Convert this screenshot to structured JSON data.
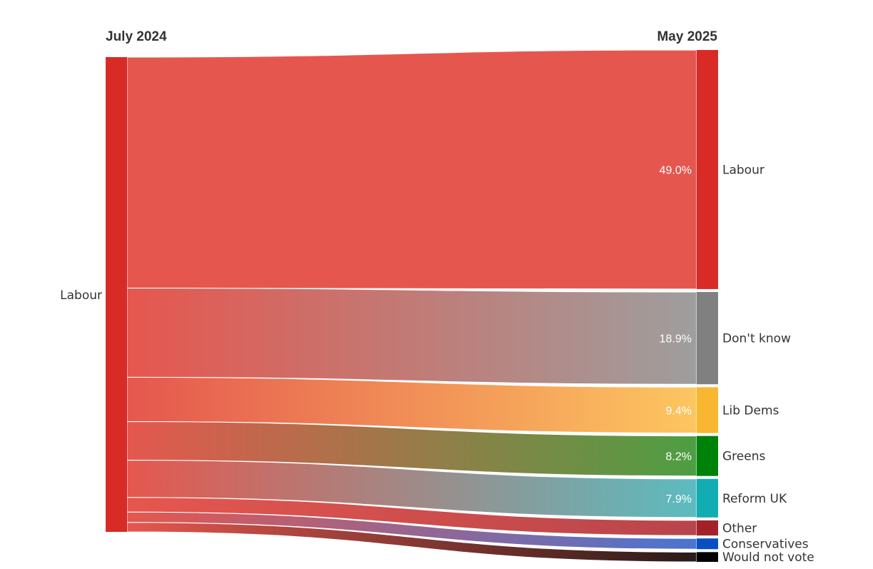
{
  "chart_data": {
    "type": "sankey",
    "left_header": "July 2024",
    "right_header": "May 2025",
    "source": {
      "name": "Labour",
      "color": "#d92b26"
    },
    "flows": [
      {
        "target": "Labour",
        "percent": 49.0,
        "label": "49.0%",
        "node_color": "#d92b26",
        "flow_color": "#e5574e"
      },
      {
        "target": "Don't know",
        "percent": 18.9,
        "label": "18.9%",
        "node_color": "#808080",
        "flow_color": "#9e9e9e"
      },
      {
        "target": "Lib Dems",
        "percent": 9.4,
        "label": "9.4%",
        "node_color": "#f9b731",
        "flow_color": "#fdc660"
      },
      {
        "target": "Greens",
        "percent": 8.2,
        "label": "8.2%",
        "node_color": "#00820a",
        "flow_color": "#4d9e43"
      },
      {
        "target": "Reform UK",
        "percent": 7.9,
        "label": "7.9%",
        "node_color": "#12acb3",
        "flow_color": "#5bbcc0"
      },
      {
        "target": "Other",
        "percent": 3.1,
        "label": "",
        "node_color": "#a3222a",
        "flow_color": "#b8454b"
      },
      {
        "target": "Conservatives",
        "percent": 2.2,
        "label": "",
        "node_color": "#0a4fc2",
        "flow_color": "#4a74d1"
      },
      {
        "target": "Would not vote",
        "percent": 2.0,
        "label": "",
        "node_color": "#000000",
        "flow_color": "#2a1a18"
      }
    ]
  }
}
